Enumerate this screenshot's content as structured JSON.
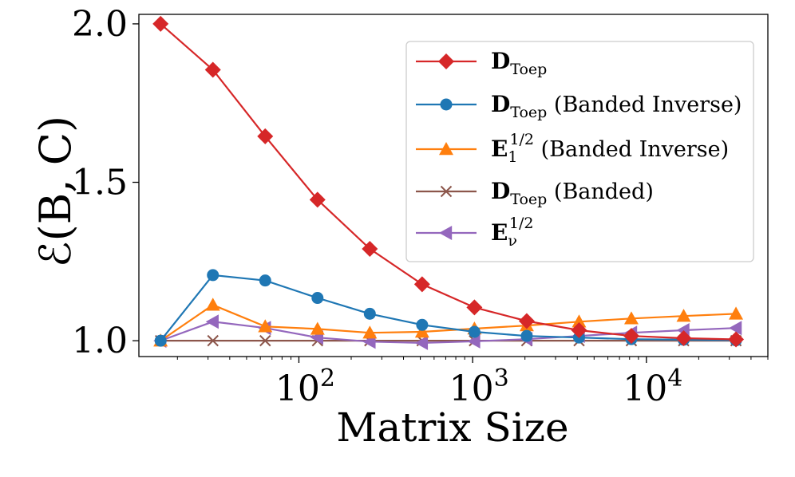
{
  "chart_data": {
    "type": "line",
    "title": "",
    "xlabel": "Matrix Size",
    "ylabel": "ℰ(B, C)",
    "xscale": "log",
    "xlim": [
      12,
      50000
    ],
    "ylim": [
      0.95,
      2.03
    ],
    "grid": false,
    "legend_position": "top-right",
    "xticks": [
      {
        "value": 100,
        "base": "10",
        "exp": "2"
      },
      {
        "value": 1000,
        "base": "10",
        "exp": "3"
      },
      {
        "value": 10000,
        "base": "10",
        "exp": "4"
      }
    ],
    "yticks": [
      {
        "value": 1.0,
        "label": "1.0"
      },
      {
        "value": 1.5,
        "label": "1.5"
      },
      {
        "value": 2.0,
        "label": "2.0"
      }
    ],
    "x": [
      16,
      32,
      64,
      128,
      256,
      512,
      1024,
      2048,
      4096,
      8192,
      16384,
      32768
    ],
    "series": [
      {
        "name": "D_Toep",
        "legend_parts": [
          {
            "text": "D",
            "bold": true
          },
          {
            "text": "Toep",
            "sub": true
          }
        ],
        "color": "#d62728",
        "marker": "diamond",
        "values": [
          2.0,
          1.855,
          1.645,
          1.445,
          1.29,
          1.178,
          1.105,
          1.062,
          1.033,
          1.015,
          1.008,
          1.004
        ]
      },
      {
        "name": "D_Toep (Banded Inverse)",
        "legend_parts": [
          {
            "text": "D",
            "bold": true
          },
          {
            "text": "Toep",
            "sub": true
          },
          {
            "text": " (Banded Inverse)"
          }
        ],
        "color": "#1f77b4",
        "marker": "circle",
        "values": [
          1.0,
          1.207,
          1.19,
          1.135,
          1.085,
          1.05,
          1.028,
          1.015,
          1.01,
          1.005,
          1.003,
          1.001
        ]
      },
      {
        "name": "E_1^{1/2} (Banded Inverse)",
        "legend_parts": [
          {
            "text": "E",
            "bold": true
          },
          {
            "text": "1",
            "sub": true
          },
          {
            "text": "1/2",
            "sup": true
          },
          {
            "text": " (Banded Inverse)"
          }
        ],
        "color": "#ff7f0e",
        "marker": "triangle-up",
        "values": [
          1.0,
          1.113,
          1.045,
          1.037,
          1.025,
          1.028,
          1.038,
          1.048,
          1.06,
          1.07,
          1.078,
          1.085
        ]
      },
      {
        "name": "D_Toep (Banded)",
        "legend_parts": [
          {
            "text": "D",
            "bold": true
          },
          {
            "text": "Toep",
            "sub": true
          },
          {
            "text": " (Banded)"
          }
        ],
        "color": "#8c564b",
        "marker": "x",
        "values": [
          1.0,
          1.0,
          1.0,
          1.0,
          1.0,
          1.0,
          1.0,
          1.0,
          1.0,
          1.0,
          1.0,
          1.0
        ]
      },
      {
        "name": "E_ν^{1/2}",
        "legend_parts": [
          {
            "text": "E",
            "bold": true
          },
          {
            "text": "ν",
            "sub": true
          },
          {
            "text": "1/2",
            "sup": true
          }
        ],
        "color": "#9467bd",
        "marker": "triangle-left",
        "values": [
          1.0,
          1.06,
          1.04,
          1.01,
          0.997,
          0.993,
          0.998,
          1.005,
          1.015,
          1.025,
          1.033,
          1.04
        ]
      }
    ]
  }
}
